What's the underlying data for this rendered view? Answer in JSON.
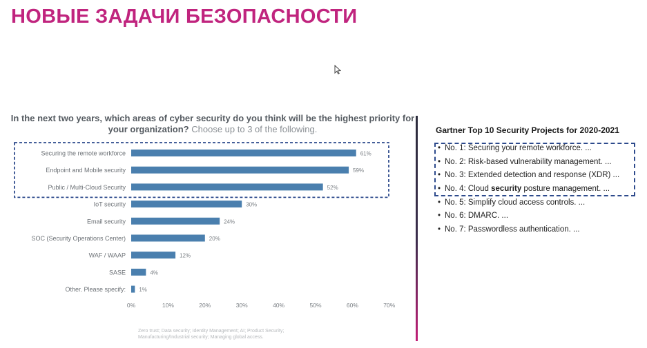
{
  "slide": {
    "title": "НОВЫЕ ЗАДАЧИ БЕЗОПАСНОСТИ"
  },
  "survey": {
    "question": "In the next two years, which areas of cyber security do you think will be the highest priority for your organization?",
    "choose": "Choose up to 3 of the following.",
    "footnote": "Zero trust; Data security; Identity Management; AI; Product Security; Manufacturing/Industrial security; Managing global access."
  },
  "chart_data": {
    "type": "bar",
    "orientation": "horizontal",
    "categories": [
      "Securing the remote workforce",
      "Endpoint and Mobile security",
      "Public / Multi-Cloud Security",
      "IoT security",
      "Email security",
      "SOC (Security Operations Center)",
      "WAF / WAAP",
      "SASE",
      "Other. Please specify:"
    ],
    "values": [
      61,
      59,
      52,
      30,
      24,
      20,
      12,
      4,
      1
    ],
    "value_labels": [
      "61%",
      "59%",
      "52%",
      "30%",
      "24%",
      "20%",
      "12%",
      "4%",
      "1%"
    ],
    "xticks": [
      "0%",
      "10%",
      "20%",
      "30%",
      "40%",
      "50%",
      "60%",
      "70%"
    ],
    "xlim": [
      0,
      70
    ],
    "highlighted_count": 3,
    "bar_color": "#4a7fae",
    "grid": false
  },
  "gartner": {
    "title": "Gartner Top 10 Security Projects for 2020-2021",
    "items": [
      {
        "prefix": "No. 1: Securing your remote workforce. ...",
        "bold": "",
        "suffix": ""
      },
      {
        "prefix": "No. 2: Risk-based vulnerability management. ...",
        "bold": "",
        "suffix": ""
      },
      {
        "prefix": "No. 3: Extended detection and response (XDR) ...",
        "bold": "",
        "suffix": ""
      },
      {
        "prefix": "No. 4: Cloud ",
        "bold": "security",
        "suffix": " posture management. ..."
      },
      {
        "prefix": "No. 5: Simplify cloud access controls. ...",
        "bold": "",
        "suffix": ""
      },
      {
        "prefix": "No. 6: DMARC. ...",
        "bold": "",
        "suffix": ""
      },
      {
        "prefix": "No. 7: Passwordless authentication. ...",
        "bold": "",
        "suffix": ""
      }
    ],
    "highlighted_count": 4,
    "accent_color": "#2d4a8c"
  },
  "colors": {
    "title": "#c0247e",
    "highlight_box": "#2d4a8c"
  }
}
